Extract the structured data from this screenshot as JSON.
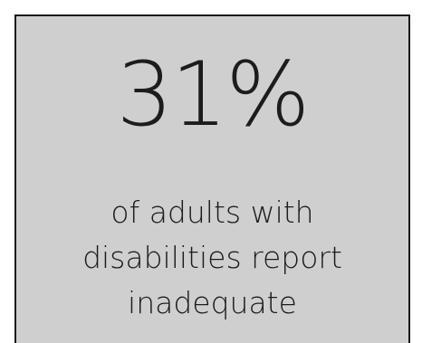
{
  "stat": {
    "value": "31%",
    "caption_lines": [
      "of adults with",
      "disabilities report",
      "inadequate"
    ]
  },
  "colors": {
    "card_background": "#d0cfd0",
    "border": "#1a1a1a",
    "text": "#1c1c1c"
  }
}
